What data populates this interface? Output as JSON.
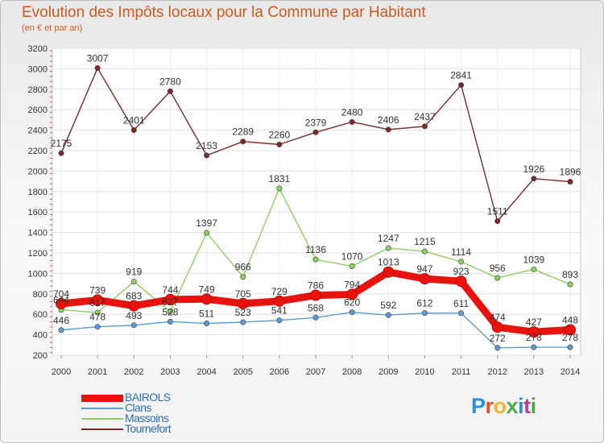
{
  "title": "Evolution des Impôts locaux pour la Commune par Habitant",
  "subtitle": "(en € et par an)",
  "brand": {
    "text": "Proxiti",
    "colors": [
      "#2e8fd6",
      "#e0502a",
      "#f2b233",
      "#4da84a",
      "#2e8fd6",
      "#c23a8e",
      "#4da84a"
    ]
  },
  "chart_data": {
    "type": "line",
    "x": [
      2000,
      2001,
      2002,
      2003,
      2004,
      2005,
      2006,
      2007,
      2008,
      2009,
      2010,
      2011,
      2012,
      2013,
      2014
    ],
    "ylim": [
      200,
      3200
    ],
    "yticks": [
      200,
      400,
      600,
      800,
      1000,
      1200,
      1400,
      1600,
      1800,
      2000,
      2200,
      2400,
      2600,
      2800,
      3000,
      3200
    ],
    "grid": true,
    "legend_position": "bottom-left",
    "series": [
      {
        "name": "BAIROLS",
        "color": "#e8130f",
        "values": [
          704,
          739,
          683,
          744,
          749,
          705,
          729,
          786,
          794,
          1013,
          947,
          923,
          474,
          427,
          448
        ]
      },
      {
        "name": "Clans",
        "color": "#5b9bd0",
        "values": [
          446,
          478,
          493,
          528,
          511,
          523,
          541,
          568,
          620,
          592,
          612,
          611,
          272,
          278,
          278
        ]
      },
      {
        "name": "Massoins",
        "color": "#8dcf5f",
        "values": [
          644,
          617,
          919,
          627,
          1397,
          966,
          1831,
          1136,
          1070,
          1247,
          1215,
          1114,
          956,
          1039,
          893
        ]
      },
      {
        "name": "Tournefort",
        "color": "#7a2a2a",
        "values": [
          2175,
          3007,
          2401,
          2780,
          2153,
          2289,
          2260,
          2379,
          2480,
          2406,
          2437,
          2841,
          1511,
          1926,
          1896
        ]
      }
    ],
    "data_labels": {
      "BAIROLS": [
        "704",
        "739",
        "683",
        "744",
        "749",
        "705",
        "729",
        "786",
        "794",
        "1013",
        "947",
        "923",
        "474",
        "427",
        "448"
      ],
      "Clans": [
        "446",
        "478",
        "493",
        "528",
        "511",
        "523",
        "541",
        "568",
        "620",
        "592",
        "612",
        "611",
        "272",
        "278",
        "278"
      ],
      "Massoins": [
        "644",
        "617",
        "919",
        "627",
        "1397",
        "966",
        "1831",
        "1136",
        "1070",
        "1247",
        "1215",
        "1114",
        "956",
        "1039",
        "893"
      ],
      "Tournefort": [
        "2175",
        "3007",
        "2401",
        "2780",
        "2153",
        "2289",
        "2260",
        "2379",
        "2480",
        "2406",
        "2437",
        "2841",
        "1511",
        "1926",
        "1896"
      ]
    }
  }
}
